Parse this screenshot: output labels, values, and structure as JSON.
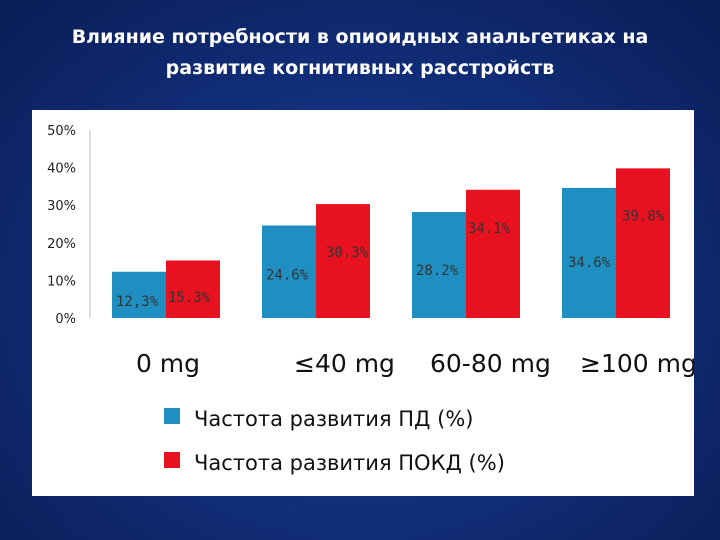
{
  "title": {
    "line1": "Влияние потребности в опиоидных анальгетиках на",
    "line2": "развитие когнитивных расстройств"
  },
  "chart_data": {
    "type": "bar",
    "title": "Влияние потребности в опиоидных анальгетиках на развитие когнитивных расстройств",
    "categories": [
      "0 mg",
      "≤40 mg",
      "60-80 mg",
      "≥100 mg"
    ],
    "series": [
      {
        "name": "Частота развития ПД (%)",
        "color": "#1e8fc0",
        "values": [
          12.3,
          24.6,
          28.2,
          34.6
        ],
        "labels": [
          "12,3%",
          "24.6%",
          "28.2%",
          "34.6%"
        ]
      },
      {
        "name": "Частота развития ПОКД (%)",
        "color": "#e8111f",
        "values": [
          15.3,
          30.3,
          34.1,
          39.8
        ],
        "labels": [
          "15.3%",
          "30.3%",
          "34.1%",
          "39.8%"
        ]
      }
    ],
    "ylim": [
      0,
      50
    ],
    "yticks": [
      "0%",
      "10%",
      "20%",
      "30%",
      "40%",
      "50%"
    ],
    "ytick_values": [
      0,
      10,
      20,
      30,
      40,
      50
    ],
    "grid": false,
    "legend_position": "bottom-center",
    "xlabel": "",
    "ylabel": ""
  }
}
